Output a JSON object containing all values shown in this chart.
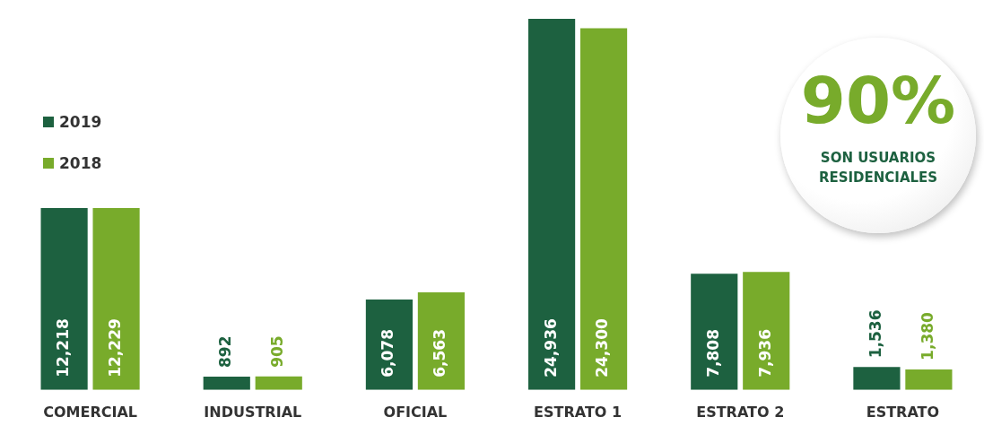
{
  "chart_data": {
    "type": "bar",
    "categories": [
      "COMERCIAL",
      "INDUSTRIAL",
      "OFICIAL",
      "ESTRATO 1",
      "ESTRATO 2",
      "ESTRATO"
    ],
    "series": [
      {
        "name": "2019",
        "color": "#1d6140",
        "values": [
          12218,
          892,
          6078,
          24936,
          7808,
          1536
        ],
        "value_labels": [
          "12,218",
          "892",
          "6,078",
          "24,936",
          "7,808",
          "1,536"
        ]
      },
      {
        "name": "2018",
        "color": "#78ab2b",
        "values": [
          12229,
          905,
          6563,
          24300,
          7936,
          1380
        ],
        "value_labels": [
          "12,229",
          "905",
          "6,563",
          "24,300",
          "7,936",
          "1,380"
        ]
      }
    ],
    "legend": "top left",
    "grid": false,
    "annotations": [
      "90%",
      "SON USUARIOS RESIDENCIALES"
    ]
  }
}
